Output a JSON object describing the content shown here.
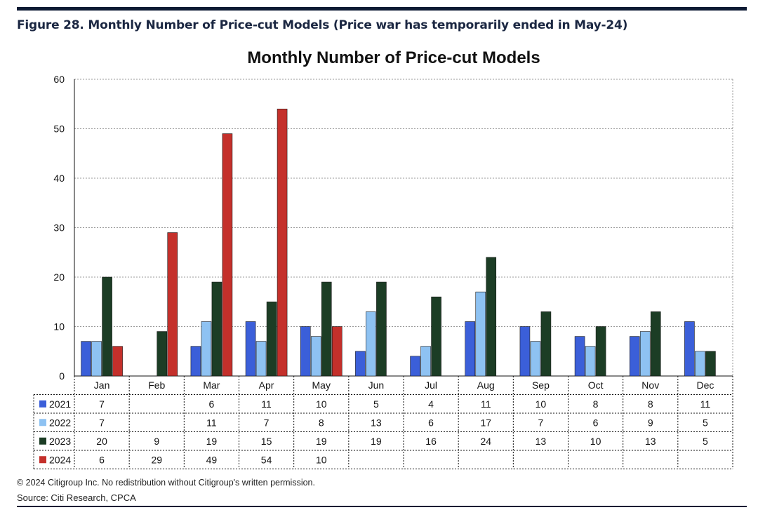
{
  "figure": {
    "caption": "Figure 28. Monthly Number of Price-cut Models (Price war has temporarily ended in May-24)",
    "copyright": "© 2024 Citigroup Inc. No redistribution without Citigroup's written permission.",
    "source": "Source: Citi Research, CPCA"
  },
  "chart_data": {
    "type": "bar",
    "title": "Monthly Number of Price-cut Models",
    "xlabel": "",
    "ylabel": "",
    "ylim": [
      0,
      60
    ],
    "yticks": [
      0,
      10,
      20,
      30,
      40,
      50,
      60
    ],
    "grid": true,
    "legend": "data-table-rows",
    "categories": [
      "Jan",
      "Feb",
      "Mar",
      "Apr",
      "May",
      "Jun",
      "Jul",
      "Aug",
      "Sep",
      "Oct",
      "Nov",
      "Dec"
    ],
    "series": [
      {
        "name": "2021",
        "color": "#3b5fd9",
        "values": [
          7,
          null,
          6,
          11,
          10,
          5,
          4,
          11,
          10,
          8,
          8,
          11
        ]
      },
      {
        "name": "2022",
        "color": "#8ec2f2",
        "values": [
          7,
          null,
          11,
          7,
          8,
          13,
          6,
          17,
          7,
          6,
          9,
          5
        ]
      },
      {
        "name": "2023",
        "color": "#1c3d25",
        "values": [
          20,
          9,
          19,
          15,
          19,
          19,
          16,
          24,
          13,
          10,
          13,
          5
        ]
      },
      {
        "name": "2024",
        "color": "#c4302b",
        "values": [
          6,
          29,
          49,
          54,
          10,
          null,
          null,
          null,
          null,
          null,
          null,
          null
        ]
      }
    ]
  }
}
